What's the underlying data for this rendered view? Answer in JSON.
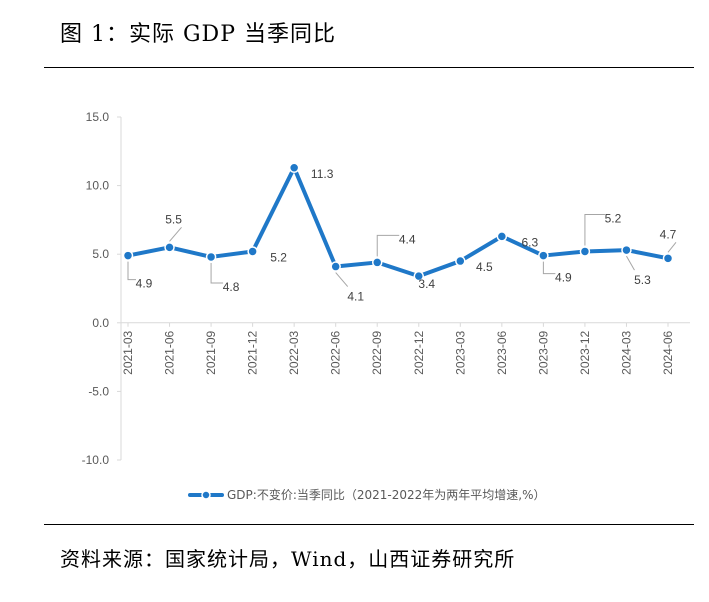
{
  "figure": {
    "title": "图 1：实际 GDP 当季同比",
    "source": "资料来源：国家统计局，Wind，山西证券研究所"
  },
  "chart_data": {
    "type": "line",
    "categories": [
      "2021-03",
      "2021-06",
      "2021-09",
      "2021-12",
      "2022-03",
      "2022-06",
      "2022-09",
      "2022-12",
      "2023-03",
      "2023-06",
      "2023-09",
      "2023-12",
      "2024-03",
      "2024-06"
    ],
    "series": [
      {
        "name": "GDP:不变价:当季同比（2021-2022年为两年平均增速,%）",
        "values": [
          4.9,
          5.5,
          4.8,
          5.2,
          11.3,
          4.1,
          4.4,
          3.4,
          4.5,
          6.3,
          4.9,
          5.2,
          5.3,
          4.7
        ],
        "color": "#1f78c8"
      }
    ],
    "data_labels": [
      "4.9",
      "5.5",
      "4.8",
      "5.2",
      "11.3",
      "4.1",
      "4.4",
      "3.4",
      "4.5",
      "6.3",
      "4.9",
      "5.2",
      "5.3",
      "4.7"
    ],
    "ylim": [
      -10,
      15
    ],
    "yticks": [
      "15.0",
      "10.0",
      "5.0",
      "0.0",
      "-5.0",
      "-10.0"
    ],
    "ytick_values": [
      15,
      10,
      5,
      0,
      -5,
      -10
    ],
    "legend_position": "bottom",
    "grid": false
  }
}
